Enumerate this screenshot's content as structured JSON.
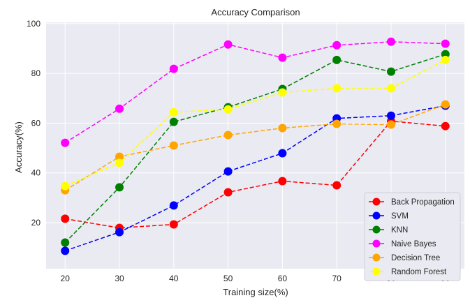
{
  "chart_data": {
    "type": "line",
    "title": "Accuracy Comparison",
    "xlabel": "Training size(%)",
    "ylabel": "Accuracy(%)",
    "x": [
      20,
      30,
      40,
      50,
      60,
      70,
      80,
      90
    ],
    "xticks": [
      20,
      30,
      40,
      50,
      60,
      70,
      80,
      90
    ],
    "yticks": [
      20,
      40,
      60,
      80,
      100
    ],
    "xlim": [
      16.5,
      93.5
    ],
    "ylim": [
      1.5,
      100.5
    ],
    "grid": true,
    "legend_position": "bottom-right",
    "background": "#eaeaf2",
    "series": [
      {
        "name": "Back Propagation",
        "color": "#ff0000",
        "values": [
          21.6,
          17.9,
          19.3,
          32.2,
          36.7,
          35.0,
          60.8,
          58.8
        ]
      },
      {
        "name": "SVM",
        "color": "#0000ff",
        "values": [
          8.7,
          16.2,
          26.9,
          40.6,
          47.9,
          61.9,
          63.0,
          67.0
        ]
      },
      {
        "name": "KNN",
        "color": "#008000",
        "values": [
          12.0,
          34.2,
          60.5,
          66.4,
          73.7,
          85.4,
          80.7,
          87.7
        ]
      },
      {
        "name": "Naive Bayes",
        "color": "#ff00ff",
        "values": [
          52.1,
          65.8,
          81.8,
          91.6,
          86.3,
          91.3,
          92.7,
          91.9
        ]
      },
      {
        "name": "Decision Tree",
        "color": "#ffa500",
        "values": [
          33.0,
          46.5,
          51.0,
          55.2,
          58.0,
          59.7,
          59.4,
          67.5
        ]
      },
      {
        "name": "Random Forest",
        "color": "#ffff00",
        "values": [
          34.7,
          44.0,
          64.4,
          65.5,
          72.3,
          74.0,
          74.0,
          85.4
        ]
      }
    ]
  }
}
